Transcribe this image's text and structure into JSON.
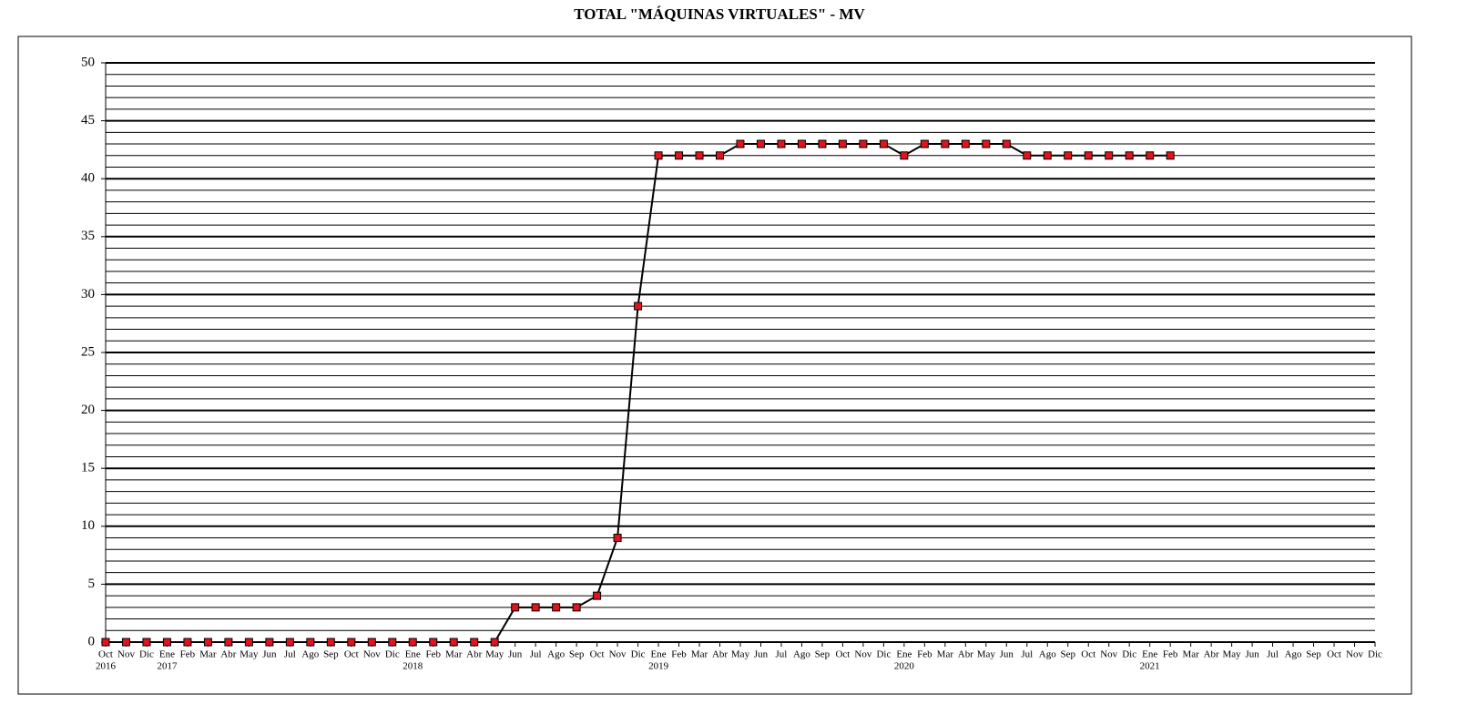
{
  "chart_data": {
    "type": "line",
    "title": "TOTAL \"MÁQUINAS VIRTUALES\" - MV",
    "categories": [
      "Oct",
      "Nov",
      "Dic",
      "Ene",
      "Feb",
      "Mar",
      "Abr",
      "May",
      "Jun",
      "Jul",
      "Ago",
      "Sep",
      "Oct",
      "Nov",
      "Dic",
      "Ene",
      "Feb",
      "Mar",
      "Abr",
      "May",
      "Jun",
      "Jul",
      "Ago",
      "Sep",
      "Oct",
      "Nov",
      "Dic",
      "Ene",
      "Feb",
      "Mar",
      "Abr",
      "May",
      "Jun",
      "Jul",
      "Ago",
      "Sep",
      "Oct",
      "Nov",
      "Dic",
      "Ene",
      "Feb",
      "Mar",
      "Abr",
      "May",
      "Jun",
      "Jul",
      "Ago",
      "Sep",
      "Oct",
      "Nov",
      "Dic",
      "Ene",
      "Feb",
      "Mar",
      "Abr",
      "May",
      "Jun",
      "Jul",
      "Ago",
      "Sep",
      "Oct",
      "Nov",
      "Dic"
    ],
    "years": [
      "2016",
      null,
      null,
      "2017",
      null,
      null,
      null,
      null,
      null,
      null,
      null,
      null,
      null,
      null,
      null,
      "2018",
      null,
      null,
      null,
      null,
      null,
      null,
      null,
      null,
      null,
      null,
      null,
      "2019",
      null,
      null,
      null,
      null,
      null,
      null,
      null,
      null,
      null,
      null,
      null,
      "2020",
      null,
      null,
      null,
      null,
      null,
      null,
      null,
      null,
      null,
      null,
      null,
      "2021",
      null,
      null,
      null,
      null,
      null,
      null,
      null,
      null,
      null,
      null,
      null
    ],
    "values": [
      0,
      0,
      0,
      0,
      0,
      0,
      0,
      0,
      0,
      0,
      0,
      0,
      0,
      0,
      0,
      0,
      0,
      0,
      0,
      0,
      3,
      3,
      3,
      3,
      4,
      9,
      29,
      42,
      42,
      42,
      42,
      43,
      43,
      43,
      43,
      43,
      43,
      43,
      43,
      42,
      43,
      43,
      43,
      43,
      43,
      42,
      42,
      42,
      42,
      42,
      42,
      42,
      42,
      null,
      null,
      null,
      null,
      null,
      null,
      null,
      null,
      null,
      null
    ],
    "color": "#000000",
    "marker_color": "#e0141e",
    "ylim": [
      0,
      50
    ],
    "yticks": [
      0,
      5,
      10,
      15,
      20,
      25,
      30,
      35,
      40,
      45,
      50
    ],
    "grid": true,
    "minor_grid_step": 1
  }
}
